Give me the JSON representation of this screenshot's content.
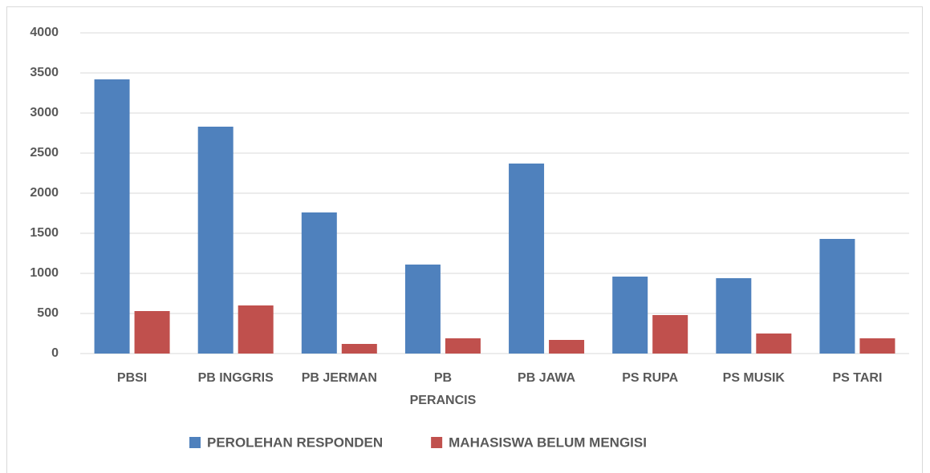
{
  "chart_data": {
    "type": "bar",
    "categories": [
      "PBSI",
      "PB INGGRIS",
      "PB JERMAN",
      "PB PERANCIS",
      "PB JAWA",
      "PS RUPA",
      "PS MUSIK",
      "PS TARI"
    ],
    "series": [
      {
        "name": "PEROLEHAN RESPONDEN",
        "color": "#4f81bd",
        "values": [
          3420,
          2830,
          1760,
          1110,
          2370,
          960,
          940,
          1430
        ]
      },
      {
        "name": "MAHASISWA BELUM MENGISI",
        "color": "#c0504d",
        "values": [
          530,
          600,
          120,
          190,
          170,
          480,
          250,
          190
        ]
      }
    ],
    "ylim": [
      0,
      4000
    ],
    "yticks": [
      0,
      500,
      1000,
      1500,
      2000,
      2500,
      3000,
      3500,
      4000
    ],
    "grid": true,
    "legend": "bottom"
  }
}
